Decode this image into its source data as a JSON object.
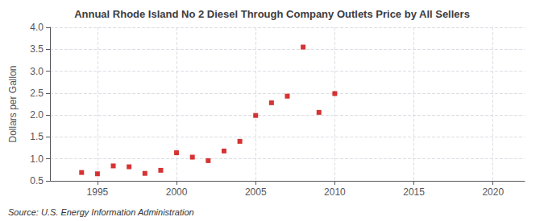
{
  "chart_data": {
    "type": "scatter",
    "title": "Annual Rhode Island No 2 Diesel Through Company Outlets Price by All Sellers",
    "ylabel": "Dollars per Gallon",
    "annotation": "Source: U.S. Energy Information Administration",
    "color": "#cc0000",
    "marker": "square",
    "grid": true,
    "x": [
      1994,
      1995,
      1996,
      1997,
      1998,
      1999,
      2000,
      2001,
      2002,
      2003,
      2004,
      2005,
      2006,
      2007,
      2008,
      2009,
      2010
    ],
    "values": [
      0.69,
      0.66,
      0.84,
      0.82,
      0.67,
      0.74,
      1.14,
      1.04,
      0.96,
      1.18,
      1.4,
      1.99,
      2.28,
      2.43,
      3.55,
      2.06,
      2.49
    ],
    "xlim": [
      1992,
      2022
    ],
    "xticks": [
      1995,
      2000,
      2005,
      2010,
      2015,
      2020
    ],
    "ylim": [
      0.5,
      4.0
    ],
    "yticks": [
      0.5,
      {
        "value": 1.0,
        "label": "1.0"
      },
      1.5,
      {
        "value": 2.0,
        "label": "2.0"
      },
      2.5,
      {
        "value": 3.0,
        "label": "3.0"
      },
      3.5,
      {
        "value": 4.0,
        "label": "4.0"
      }
    ]
  }
}
